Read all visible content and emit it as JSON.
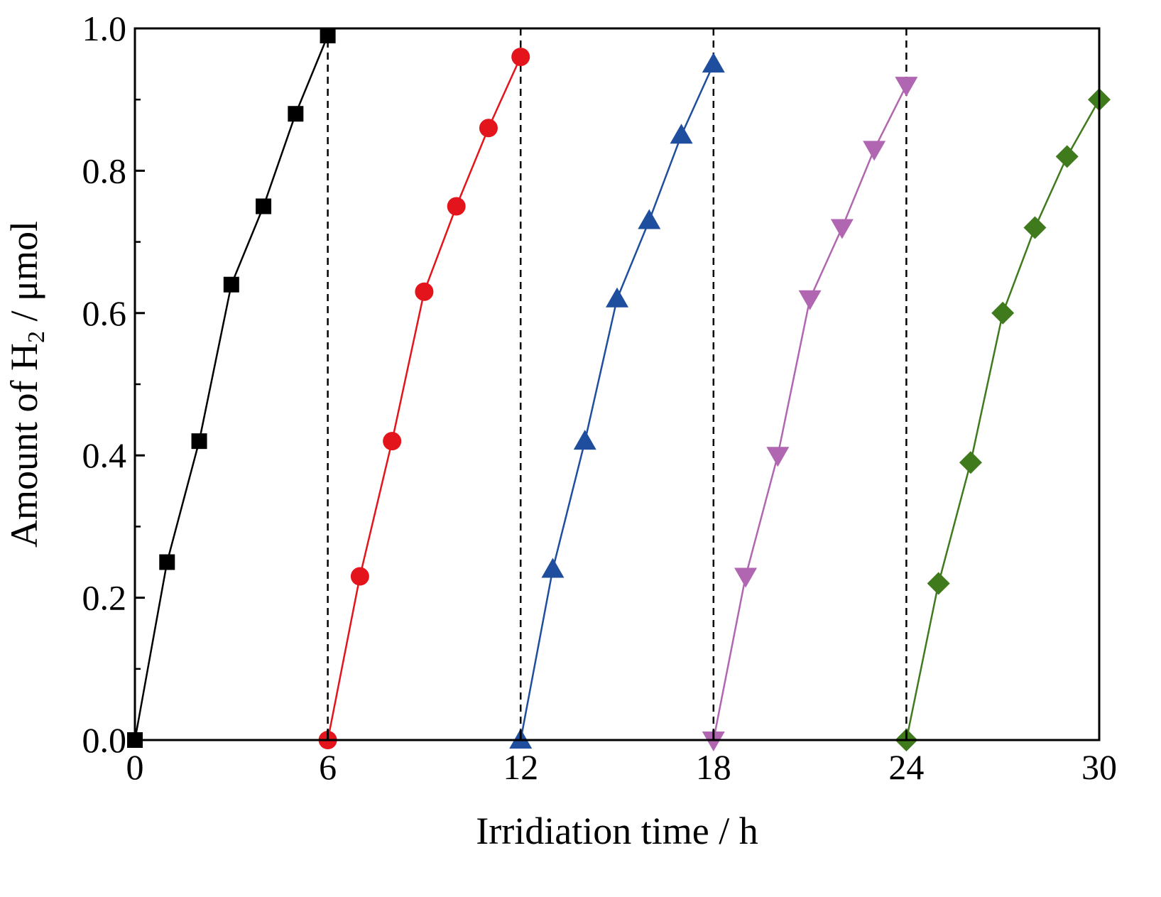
{
  "chart_data": {
    "type": "line",
    "title": "",
    "xlabel": "Irridiation time / h",
    "ylabel_prefix": "Amount of H",
    "ylabel_subscript": "2",
    "ylabel_suffix": " / μmol",
    "xlim": [
      0,
      30
    ],
    "ylim": [
      0,
      1.0
    ],
    "xticks": [
      0,
      6,
      12,
      18,
      24,
      30
    ],
    "xtick_labels": [
      "0",
      "6",
      "12",
      "18",
      "24",
      "30"
    ],
    "yticks": [
      0,
      0.2,
      0.4,
      0.6,
      0.8,
      1.0
    ],
    "ytick_labels": [
      "0.0",
      "0.2",
      "0.4",
      "0.6",
      "0.8",
      "1.0"
    ],
    "yminor_ticks": [
      0.1,
      0.3,
      0.5,
      0.7,
      0.9
    ],
    "dividers": [
      6,
      12,
      18,
      24
    ],
    "grid": false,
    "legend": "none",
    "series": [
      {
        "marker": "square",
        "color": "#000000",
        "x": [
          0,
          1,
          2,
          3,
          4,
          5,
          6
        ],
        "y": [
          0,
          0.25,
          0.42,
          0.64,
          0.75,
          0.88,
          0.99
        ]
      },
      {
        "marker": "circle",
        "color": "#e3141b",
        "x": [
          6,
          7,
          8,
          9,
          10,
          11,
          12
        ],
        "y": [
          0,
          0.23,
          0.42,
          0.63,
          0.75,
          0.86,
          0.96
        ]
      },
      {
        "marker": "triangle-up",
        "color": "#1f4e9e",
        "x": [
          12,
          13,
          14,
          15,
          16,
          17,
          18
        ],
        "y": [
          0,
          0.24,
          0.42,
          0.62,
          0.73,
          0.85,
          0.95
        ]
      },
      {
        "marker": "triangle-down",
        "color": "#b066b0",
        "x": [
          18,
          19,
          20,
          21,
          22,
          23,
          24
        ],
        "y": [
          0,
          0.23,
          0.4,
          0.62,
          0.72,
          0.83,
          0.92
        ]
      },
      {
        "marker": "diamond",
        "color": "#3f7a1c",
        "x": [
          24,
          25,
          26,
          27,
          28,
          29,
          30
        ],
        "y": [
          0,
          0.22,
          0.39,
          0.6,
          0.72,
          0.82,
          0.9
        ]
      }
    ]
  }
}
